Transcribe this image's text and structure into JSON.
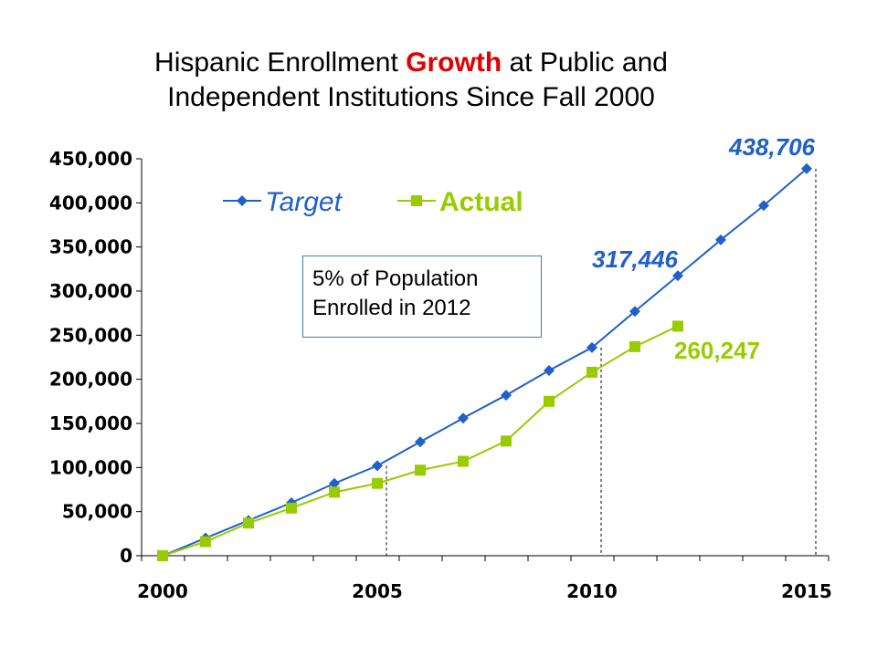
{
  "title": {
    "part1": "Hispanic Enrollment ",
    "highlight": "Growth",
    "part2": " at Public and",
    "line2": "Independent Institutions Since Fall 2000"
  },
  "note": {
    "line1": "5% of Population",
    "line2": "Enrolled in 2012"
  },
  "colors": {
    "target": "#2060c8",
    "actual": "#99cc00",
    "title_highlight": "#e00000",
    "note_border": "#3a7fa8"
  },
  "chart_data": {
    "type": "line",
    "title": "Hispanic Enrollment Growth at Public and Independent Institutions Since Fall 2000",
    "xlabel": "",
    "ylabel": "",
    "xlim": [
      2000,
      2015
    ],
    "ylim": [
      0,
      450000
    ],
    "y_ticks": [
      0,
      50000,
      100000,
      150000,
      200000,
      250000,
      300000,
      350000,
      400000,
      450000
    ],
    "y_tick_labels": [
      "0",
      "50,000",
      "100,000",
      "150,000",
      "200,000",
      "250,000",
      "300,000",
      "350,000",
      "400,000",
      "450,000"
    ],
    "x_tick_labels": [
      "2000",
      "2005",
      "2010",
      "2015"
    ],
    "x_tick_values": [
      2000,
      2005,
      2010,
      2015
    ],
    "legend_position": "top-left",
    "grid": false,
    "series": [
      {
        "name": "Target",
        "marker": "diamond",
        "x": [
          2000,
          2001,
          2002,
          2003,
          2004,
          2005,
          2006,
          2007,
          2008,
          2009,
          2010,
          2011,
          2012,
          2013,
          2014,
          2015
        ],
        "values": [
          0,
          20000,
          40000,
          60000,
          82000,
          102000,
          129000,
          156000,
          182000,
          210000,
          236000,
          277000,
          317446,
          358000,
          397000,
          438706
        ]
      },
      {
        "name": "Actual",
        "marker": "square",
        "x": [
          2000,
          2001,
          2002,
          2003,
          2004,
          2005,
          2006,
          2007,
          2008,
          2009,
          2010,
          2011,
          2012
        ],
        "values": [
          0,
          16000,
          37000,
          54000,
          72000,
          82000,
          97000,
          107000,
          130000,
          175000,
          208000,
          237000,
          260247
        ]
      }
    ],
    "annotations": [
      {
        "text": "438,706",
        "series": "Target",
        "x": 2015
      },
      {
        "text": "317,446",
        "series": "Target",
        "x": 2012
      },
      {
        "text": "260,247",
        "series": "Actual",
        "x": 2012
      }
    ],
    "reference_lines_x": [
      2005,
      2010,
      2015
    ]
  }
}
